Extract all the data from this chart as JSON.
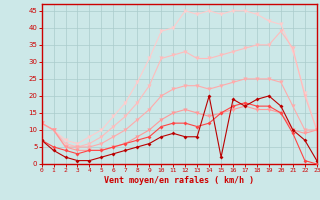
{
  "xlabel": "Vent moyen/en rafales ( km/h )",
  "xlim": [
    0,
    23
  ],
  "ylim": [
    0,
    47
  ],
  "yticks": [
    0,
    5,
    10,
    15,
    20,
    25,
    30,
    35,
    40,
    45
  ],
  "xticks": [
    0,
    1,
    2,
    3,
    4,
    5,
    6,
    7,
    8,
    9,
    10,
    11,
    12,
    13,
    14,
    15,
    16,
    17,
    18,
    19,
    20,
    21,
    22,
    23
  ],
  "bg_color": "#cce8e8",
  "grid_color": "#aacccc",
  "axis_color": "#cc0000",
  "line6_x": [
    0,
    1,
    2,
    3,
    4,
    5,
    6,
    7,
    8,
    9,
    10,
    11,
    12,
    13,
    14,
    15,
    16,
    17,
    18,
    19,
    20,
    21,
    22,
    23
  ],
  "line6_y": [
    12,
    10,
    7,
    6,
    8,
    10,
    14,
    18,
    24,
    31,
    39,
    40,
    45,
    44,
    45,
    44,
    45,
    45,
    44,
    42,
    41,
    33,
    21,
    10
  ],
  "line6_color": "#ffcccc",
  "line5_x": [
    0,
    1,
    2,
    3,
    4,
    5,
    6,
    7,
    8,
    9,
    10,
    11,
    12,
    13,
    14,
    15,
    16,
    17,
    18,
    19,
    20,
    21,
    22,
    23
  ],
  "line5_y": [
    12,
    10,
    6,
    5,
    6,
    8,
    11,
    14,
    18,
    23,
    31,
    32,
    33,
    31,
    31,
    32,
    33,
    34,
    35,
    35,
    39,
    34,
    20,
    10
  ],
  "line5_color": "#ffbbbb",
  "line4_x": [
    0,
    1,
    2,
    3,
    4,
    5,
    6,
    7,
    8,
    9,
    10,
    11,
    12,
    13,
    14,
    15,
    16,
    17,
    18,
    19,
    20,
    21,
    22,
    23
  ],
  "line4_y": [
    12,
    10,
    5,
    5,
    5,
    6,
    8,
    10,
    13,
    16,
    20,
    22,
    23,
    23,
    22,
    23,
    24,
    25,
    25,
    25,
    24,
    17,
    10,
    10
  ],
  "line4_color": "#ffaaaa",
  "line3_x": [
    0,
    1,
    2,
    3,
    4,
    5,
    6,
    7,
    8,
    9,
    10,
    11,
    12,
    13,
    14,
    15,
    16,
    17,
    18,
    19,
    20,
    21,
    22,
    23
  ],
  "line3_y": [
    12,
    10,
    5,
    4,
    4,
    4,
    5,
    6,
    8,
    10,
    13,
    15,
    16,
    15,
    14,
    15,
    16,
    17,
    16,
    16,
    15,
    10,
    9,
    10
  ],
  "line3_color": "#ff9999",
  "line1_x": [
    0,
    1,
    2,
    3,
    4,
    5,
    6,
    7,
    8,
    9,
    10,
    11,
    12,
    13,
    14,
    15,
    16,
    17,
    18,
    19,
    20,
    21,
    22,
    23
  ],
  "line1_y": [
    7,
    5,
    4,
    3,
    4,
    4,
    5,
    6,
    7,
    8,
    11,
    12,
    12,
    11,
    12,
    15,
    17,
    18,
    17,
    17,
    15,
    9,
    1,
    0
  ],
  "line1_color": "#ff4444",
  "line1_marker": "D",
  "line1_ms": 2,
  "line2_x": [
    0,
    1,
    2,
    3,
    4,
    5,
    6,
    7,
    8,
    9,
    10,
    11,
    12,
    13,
    14,
    15,
    16,
    17,
    18,
    19,
    20,
    21,
    22,
    23
  ],
  "line2_y": [
    7,
    4,
    2,
    1,
    1,
    2,
    3,
    4,
    5,
    6,
    8,
    9,
    8,
    8,
    20,
    2,
    19,
    17,
    19,
    20,
    17,
    10,
    7,
    1
  ],
  "line2_color": "#bb0000",
  "line2_marker": "D",
  "line2_ms": 2,
  "marker_v": "v",
  "marker_v_ms": 3,
  "lw": 0.8
}
